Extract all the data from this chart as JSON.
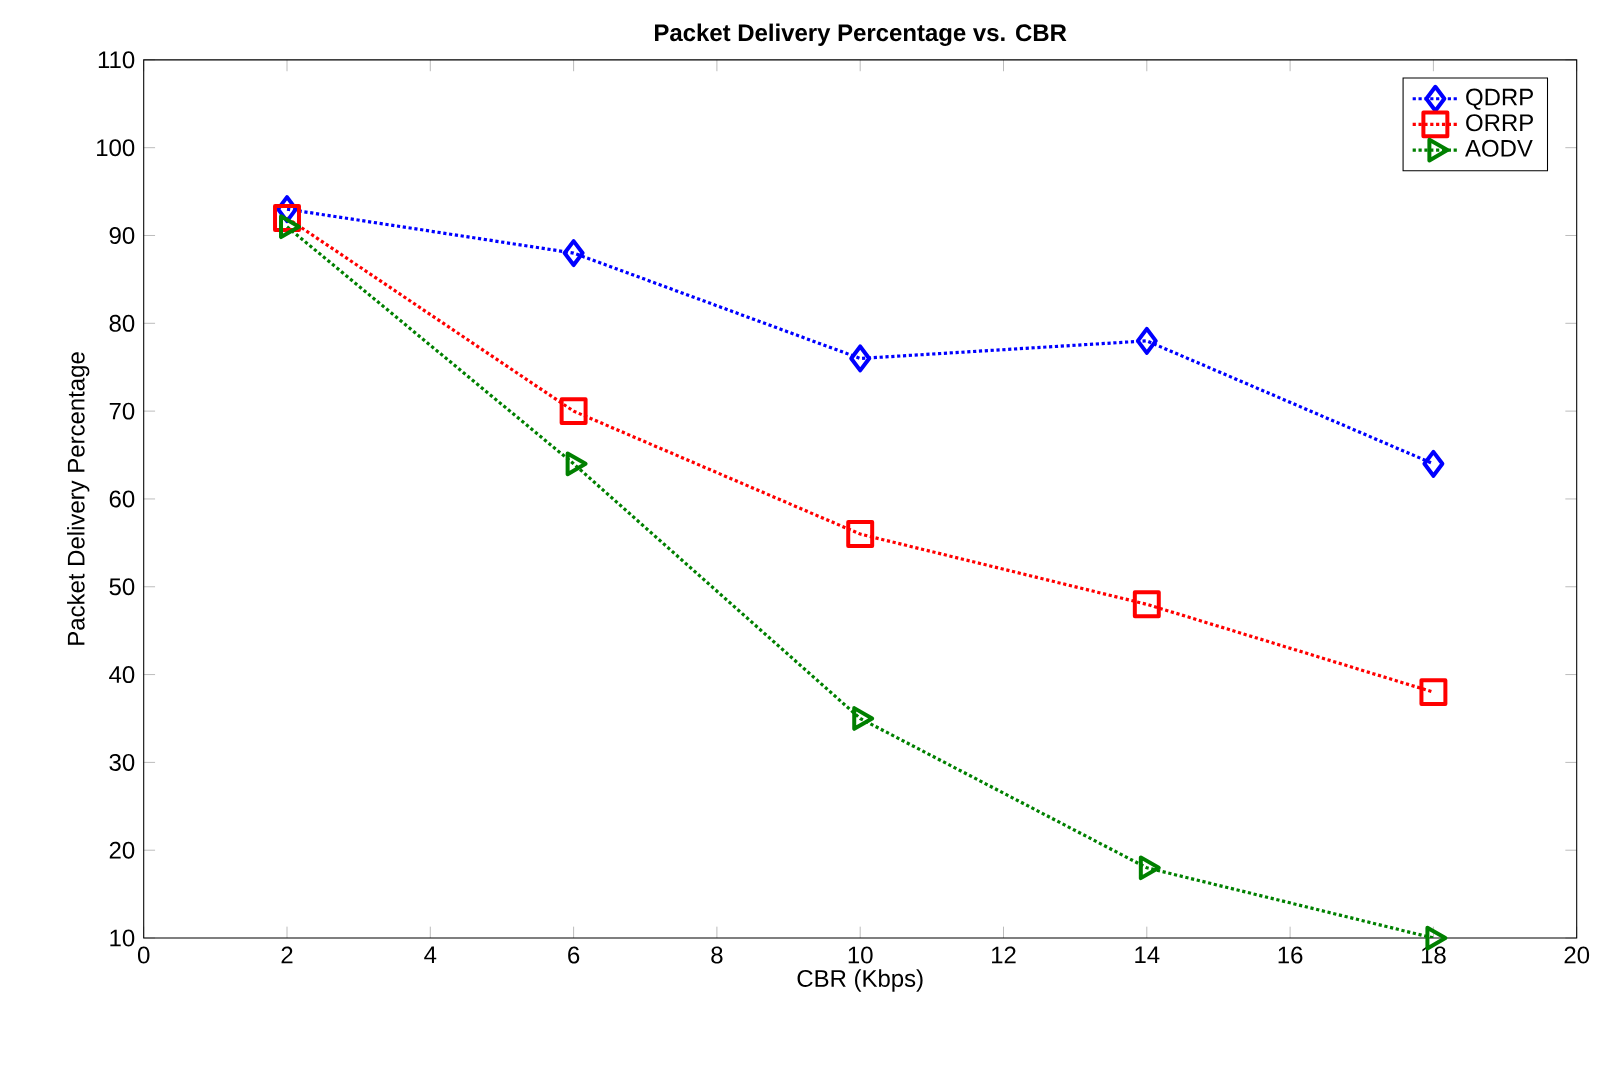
{
  "chart_data": {
    "type": "line",
    "title": "Packet Delivery Percentage vs. CBR",
    "xlabel": "CBR (Kbps)",
    "ylabel": "Packet Delivery Percentage",
    "x": [
      2,
      6,
      10,
      14,
      18
    ],
    "series": [
      {
        "name": "QDRP",
        "color": "#0000ff",
        "marker": "diamond",
        "values": [
          93,
          88,
          76,
          78,
          64
        ]
      },
      {
        "name": "ORRP",
        "color": "#ff0000",
        "marker": "square",
        "values": [
          92,
          70,
          56,
          48,
          38
        ]
      },
      {
        "name": "AODV",
        "color": "#008000",
        "marker": "triangle",
        "values": [
          91,
          64,
          35,
          18,
          10
        ]
      }
    ],
    "xlim": [
      0,
      20
    ],
    "xticks": [
      0,
      2,
      4,
      6,
      8,
      10,
      12,
      14,
      16,
      18,
      20
    ],
    "ylim": [
      10,
      110
    ],
    "yticks": [
      10,
      20,
      30,
      40,
      50,
      60,
      70,
      80,
      90,
      100,
      110
    ],
    "grid": false,
    "legend": "top right",
    "line_style": "dotted"
  }
}
